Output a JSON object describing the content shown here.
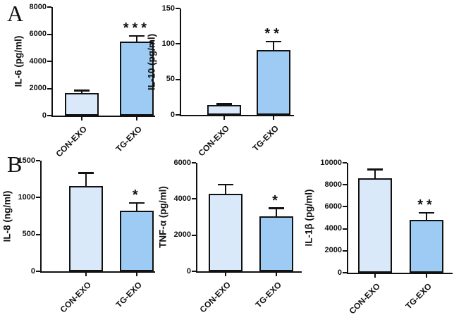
{
  "panels": [
    {
      "label": "A"
    },
    {
      "label": "B"
    }
  ],
  "colors": {
    "con_exo_fill": "#d9e9fa",
    "tg_exo_fill": "#9ecbf3",
    "bar_border": "#111111",
    "axis": "#111111",
    "background": "#ffffff"
  },
  "chart_data": [
    {
      "type": "bar",
      "panel": "A",
      "ylabel": "IL-6 (pg/ml)",
      "ylim": [
        0,
        8000
      ],
      "yticks": [
        0,
        2000,
        4000,
        6000,
        8000
      ],
      "categories": [
        "CON-EXO",
        "TG-EXO"
      ],
      "values": [
        1650,
        5450
      ],
      "errors": [
        230,
        470
      ],
      "significance": [
        "",
        "***"
      ],
      "grid": false,
      "legend": "none"
    },
    {
      "type": "bar",
      "panel": "A",
      "ylabel": "IL-10 (pg/ml)",
      "ylim": [
        0,
        150
      ],
      "yticks": [
        0,
        50,
        100,
        150
      ],
      "categories": [
        "CON-EXO",
        "TG-EXO"
      ],
      "values": [
        14,
        91
      ],
      "errors": [
        2,
        13
      ],
      "significance": [
        "",
        "**"
      ],
      "grid": false,
      "legend": "none"
    },
    {
      "type": "bar",
      "panel": "B",
      "ylabel": "IL-8 (ng/ml)",
      "ylim": [
        0,
        1500
      ],
      "yticks": [
        0,
        500,
        1000,
        1500
      ],
      "categories": [
        "CON-EXO",
        "TG-EXO"
      ],
      "values": [
        1160,
        825
      ],
      "errors": [
        180,
        110
      ],
      "significance": [
        "",
        "*"
      ],
      "grid": false,
      "legend": "none"
    },
    {
      "type": "bar",
      "panel": "B",
      "ylabel": "TNF-α (pg/ml)",
      "ylim": [
        0,
        6000
      ],
      "yticks": [
        0,
        2000,
        4000,
        6000
      ],
      "categories": [
        "CON-EXO",
        "TG-EXO"
      ],
      "values": [
        4280,
        3050
      ],
      "errors": [
        550,
        470
      ],
      "significance": [
        "",
        "*"
      ],
      "grid": false,
      "legend": "none"
    },
    {
      "type": "bar",
      "panel": "B",
      "ylabel": "IL-1β (pg/ml)",
      "ylim": [
        0,
        10000
      ],
      "yticks": [
        0,
        2000,
        4000,
        6000,
        8000,
        10000
      ],
      "categories": [
        "CON-EXO",
        "TG-EXO"
      ],
      "values": [
        8600,
        4800
      ],
      "errors": [
        850,
        710
      ],
      "significance": [
        "",
        "**"
      ],
      "grid": false,
      "legend": "none"
    }
  ]
}
